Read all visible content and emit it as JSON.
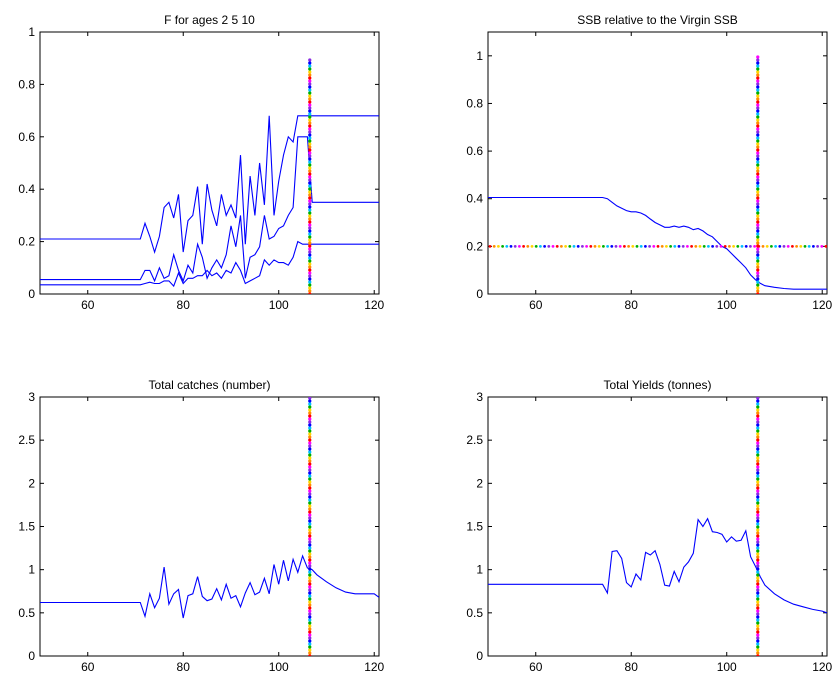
{
  "chart_data": [
    {
      "type": "line",
      "title": "F for ages  2 5 10",
      "xlim": [
        50,
        121
      ],
      "ylim": [
        0,
        1
      ],
      "xticks": [
        60,
        80,
        100,
        120
      ],
      "yticks": [
        0,
        0.2,
        0.4,
        0.6,
        0.8,
        1
      ],
      "ytick_labels": [
        "0",
        "0.2",
        "0.4",
        "0.6",
        "0.8",
        "1"
      ],
      "grid": false,
      "colors": {
        "series": "#0000ff",
        "marker": "rainbow-dots"
      },
      "series": [
        {
          "x": [
            50,
            70,
            71,
            72,
            73,
            74,
            75,
            76,
            77,
            78,
            79,
            80,
            81,
            82,
            83,
            84,
            85,
            86,
            87,
            88,
            89,
            90,
            91,
            92,
            93,
            94,
            95,
            96,
            97,
            98,
            99,
            100,
            101,
            102,
            103,
            104,
            105,
            106,
            107,
            121
          ],
          "y": [
            0.21,
            0.21,
            0.21,
            0.27,
            0.22,
            0.16,
            0.22,
            0.33,
            0.35,
            0.29,
            0.38,
            0.16,
            0.28,
            0.3,
            0.41,
            0.19,
            0.42,
            0.32,
            0.26,
            0.38,
            0.3,
            0.34,
            0.29,
            0.53,
            0.19,
            0.45,
            0.3,
            0.5,
            0.34,
            0.68,
            0.3,
            0.43,
            0.53,
            0.6,
            0.58,
            0.68,
            0.68,
            0.68,
            0.68,
            0.68
          ]
        },
        {
          "x": [
            50,
            70,
            71,
            72,
            73,
            74,
            75,
            76,
            77,
            78,
            79,
            80,
            81,
            82,
            83,
            84,
            85,
            86,
            87,
            88,
            89,
            90,
            91,
            92,
            93,
            94,
            95,
            96,
            97,
            98,
            99,
            100,
            101,
            102,
            103,
            104,
            105,
            106,
            107,
            121
          ],
          "y": [
            0.055,
            0.055,
            0.055,
            0.09,
            0.09,
            0.05,
            0.1,
            0.06,
            0.07,
            0.15,
            0.09,
            0.05,
            0.11,
            0.08,
            0.19,
            0.14,
            0.06,
            0.1,
            0.13,
            0.1,
            0.15,
            0.26,
            0.18,
            0.3,
            0.06,
            0.14,
            0.15,
            0.18,
            0.3,
            0.21,
            0.22,
            0.25,
            0.26,
            0.3,
            0.33,
            0.6,
            0.6,
            0.6,
            0.35,
            0.35
          ]
        },
        {
          "x": [
            50,
            70,
            71,
            72,
            73,
            74,
            75,
            76,
            77,
            78,
            79,
            80,
            81,
            82,
            83,
            84,
            85,
            86,
            87,
            88,
            89,
            90,
            91,
            92,
            93,
            94,
            95,
            96,
            97,
            98,
            99,
            100,
            101,
            102,
            103,
            104,
            105,
            106,
            107,
            121
          ],
          "y": [
            0.035,
            0.035,
            0.035,
            0.04,
            0.045,
            0.04,
            0.04,
            0.05,
            0.05,
            0.03,
            0.08,
            0.04,
            0.06,
            0.06,
            0.07,
            0.07,
            0.09,
            0.07,
            0.08,
            0.06,
            0.09,
            0.08,
            0.12,
            0.09,
            0.04,
            0.05,
            0.06,
            0.07,
            0.13,
            0.11,
            0.13,
            0.12,
            0.12,
            0.11,
            0.14,
            0.2,
            0.19,
            0.19,
            0.19,
            0.19
          ]
        }
      ],
      "marker_line": {
        "x": 106.5,
        "y_range": [
          0,
          0.9
        ]
      }
    },
    {
      "type": "line",
      "title": "SSB relative to the Virgin SSB",
      "xlim": [
        50,
        121
      ],
      "ylim": [
        0,
        1.1
      ],
      "xticks": [
        60,
        80,
        100,
        120
      ],
      "yticks": [
        0,
        0.2,
        0.4,
        0.6,
        0.8,
        1
      ],
      "ytick_labels": [
        "0",
        "0.2",
        "0.4",
        "0.6",
        "0.8",
        "1"
      ],
      "grid": false,
      "colors": {
        "series": "#0000ff",
        "marker": "rainbow-dots"
      },
      "series": [
        {
          "x": [
            50,
            74,
            75,
            76,
            77,
            78,
            79,
            80,
            81,
            82,
            83,
            84,
            85,
            86,
            87,
            88,
            89,
            90,
            91,
            92,
            93,
            94,
            95,
            96,
            97,
            98,
            99,
            100,
            101,
            102,
            103,
            104,
            105,
            106,
            107,
            108,
            110,
            112,
            114,
            116,
            121
          ],
          "y": [
            0.405,
            0.405,
            0.4,
            0.385,
            0.37,
            0.36,
            0.35,
            0.345,
            0.345,
            0.34,
            0.33,
            0.315,
            0.3,
            0.29,
            0.28,
            0.28,
            0.285,
            0.28,
            0.285,
            0.28,
            0.27,
            0.275,
            0.265,
            0.25,
            0.24,
            0.22,
            0.2,
            0.19,
            0.17,
            0.15,
            0.13,
            0.11,
            0.08,
            0.06,
            0.045,
            0.035,
            0.028,
            0.023,
            0.02,
            0.02,
            0.02
          ]
        }
      ],
      "marker_line": {
        "x": 106.5,
        "y_range": [
          0,
          1
        ]
      },
      "reference_line": {
        "y": 0.2
      }
    },
    {
      "type": "line",
      "title": "Total catches (number)",
      "xlim": [
        50,
        121
      ],
      "ylim": [
        0,
        3
      ],
      "xticks": [
        60,
        80,
        100,
        120
      ],
      "yticks": [
        0,
        0.5,
        1,
        1.5,
        2,
        2.5,
        3
      ],
      "ytick_labels": [
        "0",
        "0.5",
        "1",
        "1.5",
        "2",
        "2.5",
        "3"
      ],
      "grid": false,
      "colors": {
        "series": "#0000ff",
        "marker": "rainbow-dots"
      },
      "series": [
        {
          "x": [
            50,
            71,
            72,
            73,
            74,
            75,
            76,
            77,
            78,
            79,
            80,
            81,
            82,
            83,
            84,
            85,
            86,
            87,
            88,
            89,
            90,
            91,
            92,
            93,
            94,
            95,
            96,
            97,
            98,
            99,
            100,
            101,
            102,
            103,
            104,
            105,
            106,
            107,
            108,
            110,
            112,
            114,
            116,
            118,
            120,
            121
          ],
          "y": [
            0.62,
            0.62,
            0.46,
            0.72,
            0.56,
            0.67,
            1.03,
            0.6,
            0.72,
            0.77,
            0.44,
            0.7,
            0.72,
            0.92,
            0.69,
            0.64,
            0.66,
            0.78,
            0.65,
            0.83,
            0.67,
            0.7,
            0.57,
            0.73,
            0.85,
            0.71,
            0.74,
            0.9,
            0.72,
            1.06,
            0.83,
            1.11,
            0.87,
            1.12,
            0.97,
            1.16,
            1.02,
            1.0,
            0.94,
            0.86,
            0.79,
            0.74,
            0.72,
            0.72,
            0.72,
            0.68
          ]
        }
      ],
      "marker_line": {
        "x": 106.5,
        "y_range": [
          0,
          3
        ]
      }
    },
    {
      "type": "line",
      "title": "Total Yields (tonnes)",
      "xlim": [
        50,
        121
      ],
      "ylim": [
        0,
        3
      ],
      "xticks": [
        60,
        80,
        100,
        120
      ],
      "yticks": [
        0,
        0.5,
        1,
        1.5,
        2,
        2.5,
        3
      ],
      "ytick_labels": [
        "0",
        "0.5",
        "1",
        "1.5",
        "2",
        "2.5",
        "3"
      ],
      "grid": false,
      "colors": {
        "series": "#0000ff",
        "marker": "rainbow-dots"
      },
      "series": [
        {
          "x": [
            50,
            74,
            75,
            76,
            77,
            78,
            79,
            80,
            81,
            82,
            83,
            84,
            85,
            86,
            87,
            88,
            89,
            90,
            91,
            92,
            93,
            94,
            95,
            96,
            97,
            98,
            99,
            100,
            101,
            102,
            103,
            104,
            105,
            106,
            107,
            108,
            110,
            112,
            114,
            116,
            118,
            120,
            121
          ],
          "y": [
            0.83,
            0.83,
            0.73,
            1.21,
            1.22,
            1.13,
            0.85,
            0.8,
            0.95,
            0.88,
            1.2,
            1.17,
            1.22,
            1.06,
            0.82,
            0.81,
            0.98,
            0.86,
            1.03,
            1.09,
            1.19,
            1.58,
            1.5,
            1.59,
            1.44,
            1.43,
            1.41,
            1.32,
            1.38,
            1.33,
            1.34,
            1.45,
            1.15,
            1.04,
            0.92,
            0.82,
            0.72,
            0.65,
            0.6,
            0.57,
            0.54,
            0.52,
            0.5
          ]
        }
      ],
      "marker_line": {
        "x": 106.5,
        "y_range": [
          0,
          3
        ]
      }
    }
  ]
}
